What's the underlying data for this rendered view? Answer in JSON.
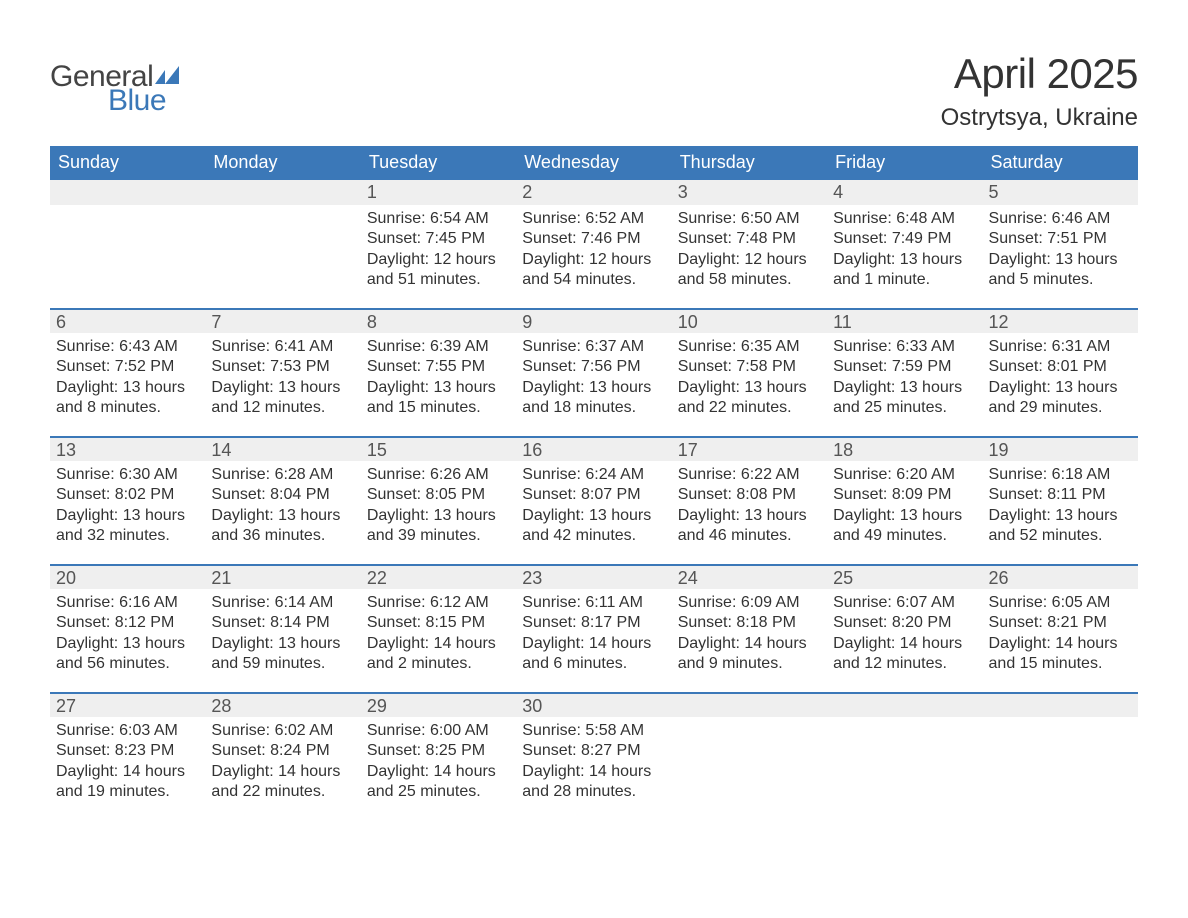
{
  "logo": {
    "word1": "General",
    "word2": "Blue",
    "flag_color": "#3b78b8"
  },
  "title": "April 2025",
  "location": "Ostrytsya, Ukraine",
  "colors": {
    "header_bg": "#3b78b8",
    "header_text": "#ffffff",
    "daynum_bg": "#efefef",
    "row_border": "#3b78b8",
    "body_text": "#333333",
    "daynum_text": "#555555",
    "page_bg": "#ffffff"
  },
  "typography": {
    "title_fontsize": 42,
    "location_fontsize": 24,
    "dow_fontsize": 18,
    "daynum_fontsize": 18,
    "body_fontsize": 16,
    "font_family": "Arial"
  },
  "days_of_week": [
    "Sunday",
    "Monday",
    "Tuesday",
    "Wednesday",
    "Thursday",
    "Friday",
    "Saturday"
  ],
  "weeks": [
    [
      {
        "n": "",
        "sunrise": "",
        "sunset": "",
        "daylight": ""
      },
      {
        "n": "",
        "sunrise": "",
        "sunset": "",
        "daylight": ""
      },
      {
        "n": "1",
        "sunrise": "Sunrise: 6:54 AM",
        "sunset": "Sunset: 7:45 PM",
        "daylight": "Daylight: 12 hours and 51 minutes."
      },
      {
        "n": "2",
        "sunrise": "Sunrise: 6:52 AM",
        "sunset": "Sunset: 7:46 PM",
        "daylight": "Daylight: 12 hours and 54 minutes."
      },
      {
        "n": "3",
        "sunrise": "Sunrise: 6:50 AM",
        "sunset": "Sunset: 7:48 PM",
        "daylight": "Daylight: 12 hours and 58 minutes."
      },
      {
        "n": "4",
        "sunrise": "Sunrise: 6:48 AM",
        "sunset": "Sunset: 7:49 PM",
        "daylight": "Daylight: 13 hours and 1 minute."
      },
      {
        "n": "5",
        "sunrise": "Sunrise: 6:46 AM",
        "sunset": "Sunset: 7:51 PM",
        "daylight": "Daylight: 13 hours and 5 minutes."
      }
    ],
    [
      {
        "n": "6",
        "sunrise": "Sunrise: 6:43 AM",
        "sunset": "Sunset: 7:52 PM",
        "daylight": "Daylight: 13 hours and 8 minutes."
      },
      {
        "n": "7",
        "sunrise": "Sunrise: 6:41 AM",
        "sunset": "Sunset: 7:53 PM",
        "daylight": "Daylight: 13 hours and 12 minutes."
      },
      {
        "n": "8",
        "sunrise": "Sunrise: 6:39 AM",
        "sunset": "Sunset: 7:55 PM",
        "daylight": "Daylight: 13 hours and 15 minutes."
      },
      {
        "n": "9",
        "sunrise": "Sunrise: 6:37 AM",
        "sunset": "Sunset: 7:56 PM",
        "daylight": "Daylight: 13 hours and 18 minutes."
      },
      {
        "n": "10",
        "sunrise": "Sunrise: 6:35 AM",
        "sunset": "Sunset: 7:58 PM",
        "daylight": "Daylight: 13 hours and 22 minutes."
      },
      {
        "n": "11",
        "sunrise": "Sunrise: 6:33 AM",
        "sunset": "Sunset: 7:59 PM",
        "daylight": "Daylight: 13 hours and 25 minutes."
      },
      {
        "n": "12",
        "sunrise": "Sunrise: 6:31 AM",
        "sunset": "Sunset: 8:01 PM",
        "daylight": "Daylight: 13 hours and 29 minutes."
      }
    ],
    [
      {
        "n": "13",
        "sunrise": "Sunrise: 6:30 AM",
        "sunset": "Sunset: 8:02 PM",
        "daylight": "Daylight: 13 hours and 32 minutes."
      },
      {
        "n": "14",
        "sunrise": "Sunrise: 6:28 AM",
        "sunset": "Sunset: 8:04 PM",
        "daylight": "Daylight: 13 hours and 36 minutes."
      },
      {
        "n": "15",
        "sunrise": "Sunrise: 6:26 AM",
        "sunset": "Sunset: 8:05 PM",
        "daylight": "Daylight: 13 hours and 39 minutes."
      },
      {
        "n": "16",
        "sunrise": "Sunrise: 6:24 AM",
        "sunset": "Sunset: 8:07 PM",
        "daylight": "Daylight: 13 hours and 42 minutes."
      },
      {
        "n": "17",
        "sunrise": "Sunrise: 6:22 AM",
        "sunset": "Sunset: 8:08 PM",
        "daylight": "Daylight: 13 hours and 46 minutes."
      },
      {
        "n": "18",
        "sunrise": "Sunrise: 6:20 AM",
        "sunset": "Sunset: 8:09 PM",
        "daylight": "Daylight: 13 hours and 49 minutes."
      },
      {
        "n": "19",
        "sunrise": "Sunrise: 6:18 AM",
        "sunset": "Sunset: 8:11 PM",
        "daylight": "Daylight: 13 hours and 52 minutes."
      }
    ],
    [
      {
        "n": "20",
        "sunrise": "Sunrise: 6:16 AM",
        "sunset": "Sunset: 8:12 PM",
        "daylight": "Daylight: 13 hours and 56 minutes."
      },
      {
        "n": "21",
        "sunrise": "Sunrise: 6:14 AM",
        "sunset": "Sunset: 8:14 PM",
        "daylight": "Daylight: 13 hours and 59 minutes."
      },
      {
        "n": "22",
        "sunrise": "Sunrise: 6:12 AM",
        "sunset": "Sunset: 8:15 PM",
        "daylight": "Daylight: 14 hours and 2 minutes."
      },
      {
        "n": "23",
        "sunrise": "Sunrise: 6:11 AM",
        "sunset": "Sunset: 8:17 PM",
        "daylight": "Daylight: 14 hours and 6 minutes."
      },
      {
        "n": "24",
        "sunrise": "Sunrise: 6:09 AM",
        "sunset": "Sunset: 8:18 PM",
        "daylight": "Daylight: 14 hours and 9 minutes."
      },
      {
        "n": "25",
        "sunrise": "Sunrise: 6:07 AM",
        "sunset": "Sunset: 8:20 PM",
        "daylight": "Daylight: 14 hours and 12 minutes."
      },
      {
        "n": "26",
        "sunrise": "Sunrise: 6:05 AM",
        "sunset": "Sunset: 8:21 PM",
        "daylight": "Daylight: 14 hours and 15 minutes."
      }
    ],
    [
      {
        "n": "27",
        "sunrise": "Sunrise: 6:03 AM",
        "sunset": "Sunset: 8:23 PM",
        "daylight": "Daylight: 14 hours and 19 minutes."
      },
      {
        "n": "28",
        "sunrise": "Sunrise: 6:02 AM",
        "sunset": "Sunset: 8:24 PM",
        "daylight": "Daylight: 14 hours and 22 minutes."
      },
      {
        "n": "29",
        "sunrise": "Sunrise: 6:00 AM",
        "sunset": "Sunset: 8:25 PM",
        "daylight": "Daylight: 14 hours and 25 minutes."
      },
      {
        "n": "30",
        "sunrise": "Sunrise: 5:58 AM",
        "sunset": "Sunset: 8:27 PM",
        "daylight": "Daylight: 14 hours and 28 minutes."
      },
      {
        "n": "",
        "sunrise": "",
        "sunset": "",
        "daylight": ""
      },
      {
        "n": "",
        "sunrise": "",
        "sunset": "",
        "daylight": ""
      },
      {
        "n": "",
        "sunrise": "",
        "sunset": "",
        "daylight": ""
      }
    ]
  ]
}
